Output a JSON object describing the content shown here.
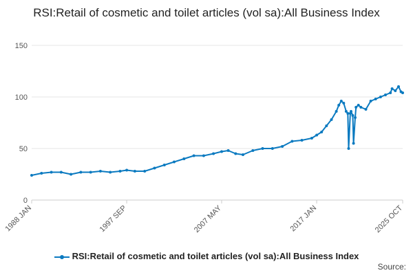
{
  "chart_data": {
    "type": "line",
    "title": "RSI:Retail of cosmetic and toilet articles (vol sa):All Business Index",
    "xlabel": "",
    "ylabel": "",
    "ylim": [
      0,
      150
    ],
    "y_ticks": [
      "0",
      "50",
      "100",
      "150"
    ],
    "x_ticks": [
      "1988 JAN",
      "1997 SEP",
      "2007 MAY",
      "2017 JAN",
      "2025 OCT"
    ],
    "grid": true,
    "legend_position": "bottom",
    "series": [
      {
        "name": "RSI:Retail of cosmetic and toilet articles (vol sa):All Business Index",
        "color": "#0b7ac0",
        "x": [
          1988.0,
          1989.0,
          1990.0,
          1991.0,
          1992.0,
          1993.0,
          1994.0,
          1995.0,
          1996.0,
          1997.0,
          1997.67,
          1998.5,
          1999.5,
          2000.5,
          2001.5,
          2002.5,
          2003.5,
          2004.5,
          2005.5,
          2006.5,
          2007.33,
          2008.0,
          2008.75,
          2009.5,
          2010.5,
          2011.5,
          2012.5,
          2013.5,
          2014.5,
          2015.5,
          2016.5,
          2017.0,
          2017.5,
          2018.0,
          2018.5,
          2019.0,
          2019.25,
          2019.5,
          2019.75,
          2020.0,
          2020.17,
          2020.25,
          2020.42,
          2020.5,
          2020.67,
          2020.75,
          2020.92,
          2021.0,
          2021.25,
          2021.5,
          2022.0,
          2022.5,
          2023.0,
          2023.5,
          2024.0,
          2024.5,
          2024.67,
          2025.0,
          2025.33,
          2025.58,
          2025.75
        ],
        "values": [
          24,
          26,
          27,
          27,
          25,
          27,
          27,
          28,
          27,
          28,
          29,
          28,
          28,
          31,
          34,
          37,
          40,
          43,
          43,
          45,
          47,
          48,
          45,
          44,
          48,
          50,
          50,
          52,
          57,
          58,
          60,
          63,
          66,
          72,
          78,
          86,
          92,
          96,
          94,
          86,
          84,
          50,
          84,
          86,
          82,
          55,
          80,
          90,
          92,
          90,
          88,
          96,
          98,
          100,
          102,
          104,
          108,
          106,
          110,
          105,
          104
        ]
      }
    ]
  },
  "source_label": "Source:"
}
